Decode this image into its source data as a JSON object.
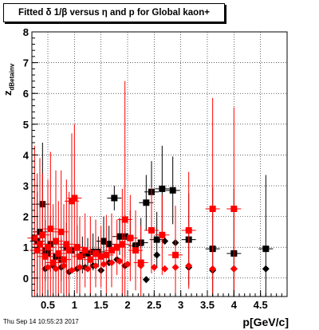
{
  "title": "Fitted δ 1/β versus η and p for Global kaon+",
  "footer": "Thu Sep 14 10:55:23 2017",
  "colors": {
    "red": "#ff0000",
    "black": "#000000",
    "grid": "#000000"
  },
  "chart_data": {
    "type": "scatter",
    "title": "Fitted δ 1/β versus η and p for Global kaon+",
    "xlabel": "p[GeV/c]",
    "ylabel": "z",
    "ylabel_sub": "dBetainv",
    "xlim": [
      0.2,
      5.0
    ],
    "ylim": [
      -0.6,
      8.0
    ],
    "grid": true,
    "x_ticks": [
      {
        "value": 0.5,
        "label": "0.5"
      },
      {
        "value": 1.0,
        "label": "1"
      },
      {
        "value": 1.5,
        "label": "1.5"
      },
      {
        "value": 2.0,
        "label": "2"
      },
      {
        "value": 2.5,
        "label": "2.5"
      },
      {
        "value": 3.0,
        "label": "3"
      },
      {
        "value": 3.5,
        "label": "3.5"
      },
      {
        "value": 4.0,
        "label": "4"
      },
      {
        "value": 4.5,
        "label": "4.5"
      }
    ],
    "y_ticks": [
      {
        "value": 0,
        "label": "0"
      },
      {
        "value": 1,
        "label": "1"
      },
      {
        "value": 2,
        "label": "2"
      },
      {
        "value": 3,
        "label": "3"
      },
      {
        "value": 4,
        "label": "4"
      },
      {
        "value": 5,
        "label": "5"
      },
      {
        "value": 6,
        "label": "6"
      },
      {
        "value": 7,
        "label": "7"
      },
      {
        "value": 8,
        "label": "8"
      }
    ],
    "series": [
      {
        "color": "#000000",
        "marker": "square",
        "points": [
          {
            "x": 0.3,
            "y": 1.2,
            "err": 1.6
          },
          {
            "x": 0.35,
            "y": 1.5,
            "err": 1.4
          },
          {
            "x": 0.4,
            "y": 2.4,
            "err": 2.0
          },
          {
            "x": 0.45,
            "y": 0.9,
            "err": 1.0
          },
          {
            "x": 0.5,
            "y": 0.8,
            "err": 1.2
          },
          {
            "x": 0.55,
            "y": 1.1,
            "err": 0.9
          },
          {
            "x": 0.65,
            "y": 0.7,
            "err": 0.8
          },
          {
            "x": 0.75,
            "y": 0.6,
            "err": 0.7
          },
          {
            "x": 0.85,
            "y": 1.0,
            "err": 0.8
          },
          {
            "x": 0.95,
            "y": 0.9,
            "err": 0.6
          },
          {
            "x": 1.05,
            "y": 1.0,
            "err": 0.7
          },
          {
            "x": 1.15,
            "y": 0.75,
            "err": 0.6
          },
          {
            "x": 1.25,
            "y": 0.8,
            "err": 0.5
          },
          {
            "x": 1.35,
            "y": 0.85,
            "err": 0.6
          },
          {
            "x": 1.45,
            "y": 0.85,
            "err": 0.5
          },
          {
            "x": 1.55,
            "y": 1.2,
            "err": 0.8
          },
          {
            "x": 1.65,
            "y": 1.1,
            "err": 0.6
          },
          {
            "x": 1.75,
            "y": 2.6,
            "err": 0.4
          },
          {
            "x": 1.85,
            "y": 1.35,
            "err": 0.6
          },
          {
            "x": 1.95,
            "y": 1.35,
            "err": 0.7
          },
          {
            "x": 2.05,
            "y": 1.3,
            "err": 0.9
          },
          {
            "x": 2.15,
            "y": 1.05,
            "err": 0.8
          },
          {
            "x": 2.25,
            "y": 1.15,
            "err": 0.8
          },
          {
            "x": 2.35,
            "y": 2.45,
            "err": 0.9
          },
          {
            "x": 2.45,
            "y": 2.8,
            "err": 1.0
          },
          {
            "x": 2.55,
            "y": 1.25,
            "err": 0.9
          },
          {
            "x": 2.65,
            "y": 2.9,
            "err": 1.4
          },
          {
            "x": 2.85,
            "y": 2.85,
            "err": 1.1
          },
          {
            "x": 3.15,
            "y": 1.25,
            "err": 1.5
          },
          {
            "x": 3.6,
            "y": 0.95,
            "err": 2.0
          },
          {
            "x": 4.0,
            "y": 0.8,
            "err": 2.1
          },
          {
            "x": 4.6,
            "y": 0.95,
            "err": 2.4
          }
        ]
      },
      {
        "color": "#000000",
        "marker": "diamond",
        "points": [
          {
            "x": 0.45,
            "y": 0.3
          },
          {
            "x": 0.6,
            "y": 0.4
          },
          {
            "x": 0.75,
            "y": 0.35
          },
          {
            "x": 0.9,
            "y": 0.2
          },
          {
            "x": 1.05,
            "y": 0.3
          },
          {
            "x": 1.2,
            "y": 0.35
          },
          {
            "x": 1.35,
            "y": 0.4
          },
          {
            "x": 1.5,
            "y": 0.25
          },
          {
            "x": 1.65,
            "y": 0.5
          },
          {
            "x": 1.8,
            "y": 0.6
          },
          {
            "x": 1.95,
            "y": 0.4
          },
          {
            "x": 2.15,
            "y": 0.95
          },
          {
            "x": 2.35,
            "y": -0.05
          },
          {
            "x": 2.55,
            "y": 0.75
          },
          {
            "x": 2.7,
            "y": 1.2
          },
          {
            "x": 2.9,
            "y": 1.15
          },
          {
            "x": 3.15,
            "y": 0.35
          },
          {
            "x": 3.6,
            "y": 0.25
          },
          {
            "x": 4.0,
            "y": 0.3
          },
          {
            "x": 4.6,
            "y": 0.3
          }
        ]
      },
      {
        "color": "#ff0000",
        "marker": "square",
        "points": [
          {
            "x": 0.25,
            "y": 1.3,
            "err": 3.0
          },
          {
            "x": 0.3,
            "y": 0.9,
            "err": 2.5
          },
          {
            "x": 0.35,
            "y": 1.1,
            "err": 2.8
          },
          {
            "x": 0.4,
            "y": 1.4,
            "err": 2.0
          },
          {
            "x": 0.45,
            "y": 0.7,
            "err": 1.8
          },
          {
            "x": 0.5,
            "y": 1.0,
            "err": 2.2
          },
          {
            "x": 0.55,
            "y": 1.6,
            "err": 2.5
          },
          {
            "x": 0.6,
            "y": 0.5,
            "err": 1.9
          },
          {
            "x": 0.65,
            "y": 1.2,
            "err": 2.3
          },
          {
            "x": 0.7,
            "y": 0.8,
            "err": 1.7
          },
          {
            "x": 0.75,
            "y": 1.5,
            "err": 2.0
          },
          {
            "x": 0.8,
            "y": 0.6,
            "err": 1.8
          },
          {
            "x": 0.85,
            "y": 1.1,
            "err": 2.1
          },
          {
            "x": 0.9,
            "y": 0.9,
            "err": 1.9
          },
          {
            "x": 0.95,
            "y": 2.5,
            "err": 2.2
          },
          {
            "x": 1.0,
            "y": 2.6,
            "err": 2.4
          },
          {
            "x": 1.05,
            "y": 1.0,
            "err": 1.5
          },
          {
            "x": 1.1,
            "y": 0.7,
            "err": 1.3
          },
          {
            "x": 1.2,
            "y": 0.9,
            "err": 1.2
          },
          {
            "x": 1.3,
            "y": 0.6,
            "err": 1.4
          },
          {
            "x": 1.4,
            "y": 0.8,
            "err": 1.1
          },
          {
            "x": 1.5,
            "y": 0.7,
            "err": 1.0
          },
          {
            "x": 1.6,
            "y": 0.75,
            "err": 1.3
          },
          {
            "x": 1.7,
            "y": 0.9,
            "err": 1.2
          },
          {
            "x": 1.8,
            "y": 1.0,
            "err": 0.9
          },
          {
            "x": 1.9,
            "y": 1.1,
            "err": 1.8
          },
          {
            "x": 1.95,
            "y": 1.9,
            "err": 4.5
          },
          {
            "x": 2.05,
            "y": 1.3,
            "err": 1.4
          },
          {
            "x": 2.15,
            "y": 0.9,
            "err": 1.3
          },
          {
            "x": 2.25,
            "y": 0.5,
            "err": 1.2
          },
          {
            "x": 2.45,
            "y": 1.55,
            "err": 1.4
          },
          {
            "x": 2.65,
            "y": 1.4,
            "err": 1.3
          },
          {
            "x": 2.9,
            "y": 0.75,
            "err": 1.6
          },
          {
            "x": 3.15,
            "y": 1.55,
            "err": 1.9
          },
          {
            "x": 3.6,
            "y": 2.25,
            "err": 3.6
          },
          {
            "x": 4.0,
            "y": 2.25,
            "err": 3.3
          }
        ]
      },
      {
        "color": "#ff0000",
        "marker": "diamond",
        "points": [
          {
            "x": 0.5,
            "y": 0.35
          },
          {
            "x": 0.65,
            "y": 0.3
          },
          {
            "x": 0.8,
            "y": 0.4
          },
          {
            "x": 0.95,
            "y": 0.25
          },
          {
            "x": 1.1,
            "y": 0.35
          },
          {
            "x": 1.25,
            "y": 0.3
          },
          {
            "x": 1.4,
            "y": 0.4
          },
          {
            "x": 1.55,
            "y": 0.45
          },
          {
            "x": 1.7,
            "y": 0.5
          },
          {
            "x": 1.85,
            "y": 0.55
          },
          {
            "x": 2.0,
            "y": 0.45
          },
          {
            "x": 2.25,
            "y": 0.4
          },
          {
            "x": 2.5,
            "y": 0.35
          },
          {
            "x": 2.7,
            "y": 0.3
          },
          {
            "x": 2.9,
            "y": 0.35
          },
          {
            "x": 3.15,
            "y": 0.4
          },
          {
            "x": 3.6,
            "y": 0.3
          },
          {
            "x": 4.0,
            "y": 0.3
          }
        ]
      }
    ]
  }
}
